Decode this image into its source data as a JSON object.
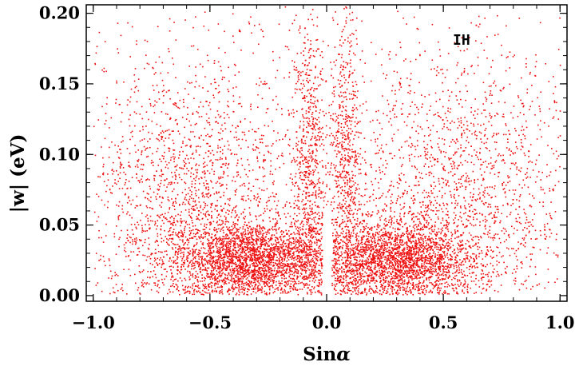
{
  "chart_data": {
    "type": "scatter",
    "xlabel": "Sin",
    "xlabel_symbol": "α",
    "ylabel": "|w| (eV)",
    "xlim": [
      -1.03,
      1.03
    ],
    "ylim": [
      -0.004,
      0.206
    ],
    "x_ticks": [
      -1.0,
      -0.5,
      0.0,
      0.5,
      1.0
    ],
    "x_tick_labels": [
      "−1.0",
      "−0.5",
      "0.0",
      "0.5",
      "1.0"
    ],
    "y_ticks": [
      0.0,
      0.05,
      0.1,
      0.15,
      0.2
    ],
    "y_tick_labels": [
      "0.00",
      "0.05",
      "0.10",
      "0.15",
      "0.20"
    ],
    "annotation": "IH",
    "marker_color": "#ee1111",
    "grid": false,
    "series": [
      {
        "clusters": [
          {
            "x": -0.32,
            "y": 0.026,
            "sx": 0.17,
            "sy": 0.014,
            "n": 2600
          },
          {
            "x": 0.3,
            "y": 0.025,
            "sx": 0.16,
            "sy": 0.014,
            "n": 2400
          },
          {
            "x": -0.6,
            "y": 0.055,
            "sx": 0.22,
            "sy": 0.035,
            "n": 1100
          },
          {
            "x": 0.55,
            "y": 0.055,
            "sx": 0.22,
            "sy": 0.035,
            "n": 1000
          },
          {
            "x": -0.08,
            "y": 0.09,
            "sx": 0.035,
            "sy": 0.055,
            "n": 700
          },
          {
            "x": 0.08,
            "y": 0.09,
            "sx": 0.035,
            "sy": 0.055,
            "n": 650
          },
          {
            "x": -0.55,
            "y": 0.11,
            "sx": 0.25,
            "sy": 0.035,
            "n": 500
          },
          {
            "x": 0.55,
            "y": 0.11,
            "sx": 0.25,
            "sy": 0.035,
            "n": 500
          }
        ],
        "uniform_background": {
          "n": 700,
          "x": [
            -1.0,
            1.0
          ],
          "y": [
            0.0,
            0.2
          ]
        }
      }
    ]
  }
}
